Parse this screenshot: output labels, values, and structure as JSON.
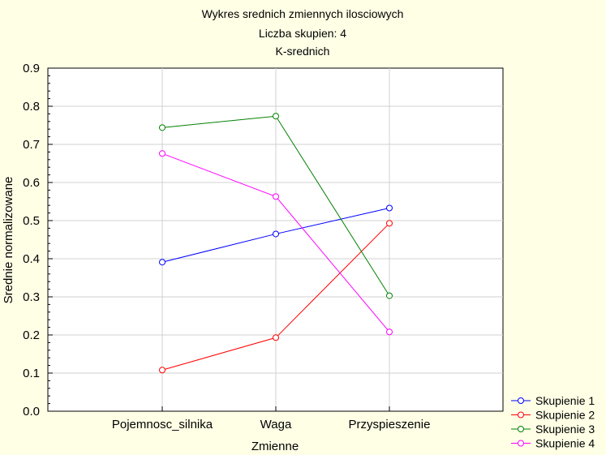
{
  "chart_data": {
    "type": "line",
    "title_lines": [
      "Wykres srednich zmiennych ilosciowych",
      "Liczba skupien: 4",
      "K-srednich"
    ],
    "xlabel": "Zmienne",
    "ylabel": "Srednie normalizowane",
    "categories": [
      "Pojemnosc_silnika",
      "Waga",
      "Przyspieszenie"
    ],
    "ylim": [
      0.0,
      0.9
    ],
    "yticks": [
      "0.0",
      "0.1",
      "0.2",
      "0.3",
      "0.4",
      "0.5",
      "0.6",
      "0.7",
      "0.8",
      "0.9"
    ],
    "grid": true,
    "legend_position": "bottom-right",
    "series": [
      {
        "name": "Skupienie 1",
        "color": "#0000ff",
        "values": [
          0.391,
          0.465,
          0.533
        ]
      },
      {
        "name": "Skupienie 2",
        "color": "#ff0000",
        "values": [
          0.108,
          0.193,
          0.493
        ]
      },
      {
        "name": "Skupienie 3",
        "color": "#008000",
        "values": [
          0.744,
          0.774,
          0.303
        ]
      },
      {
        "name": "Skupienie 4",
        "color": "#ff00ff",
        "values": [
          0.676,
          0.563,
          0.208
        ]
      }
    ]
  }
}
